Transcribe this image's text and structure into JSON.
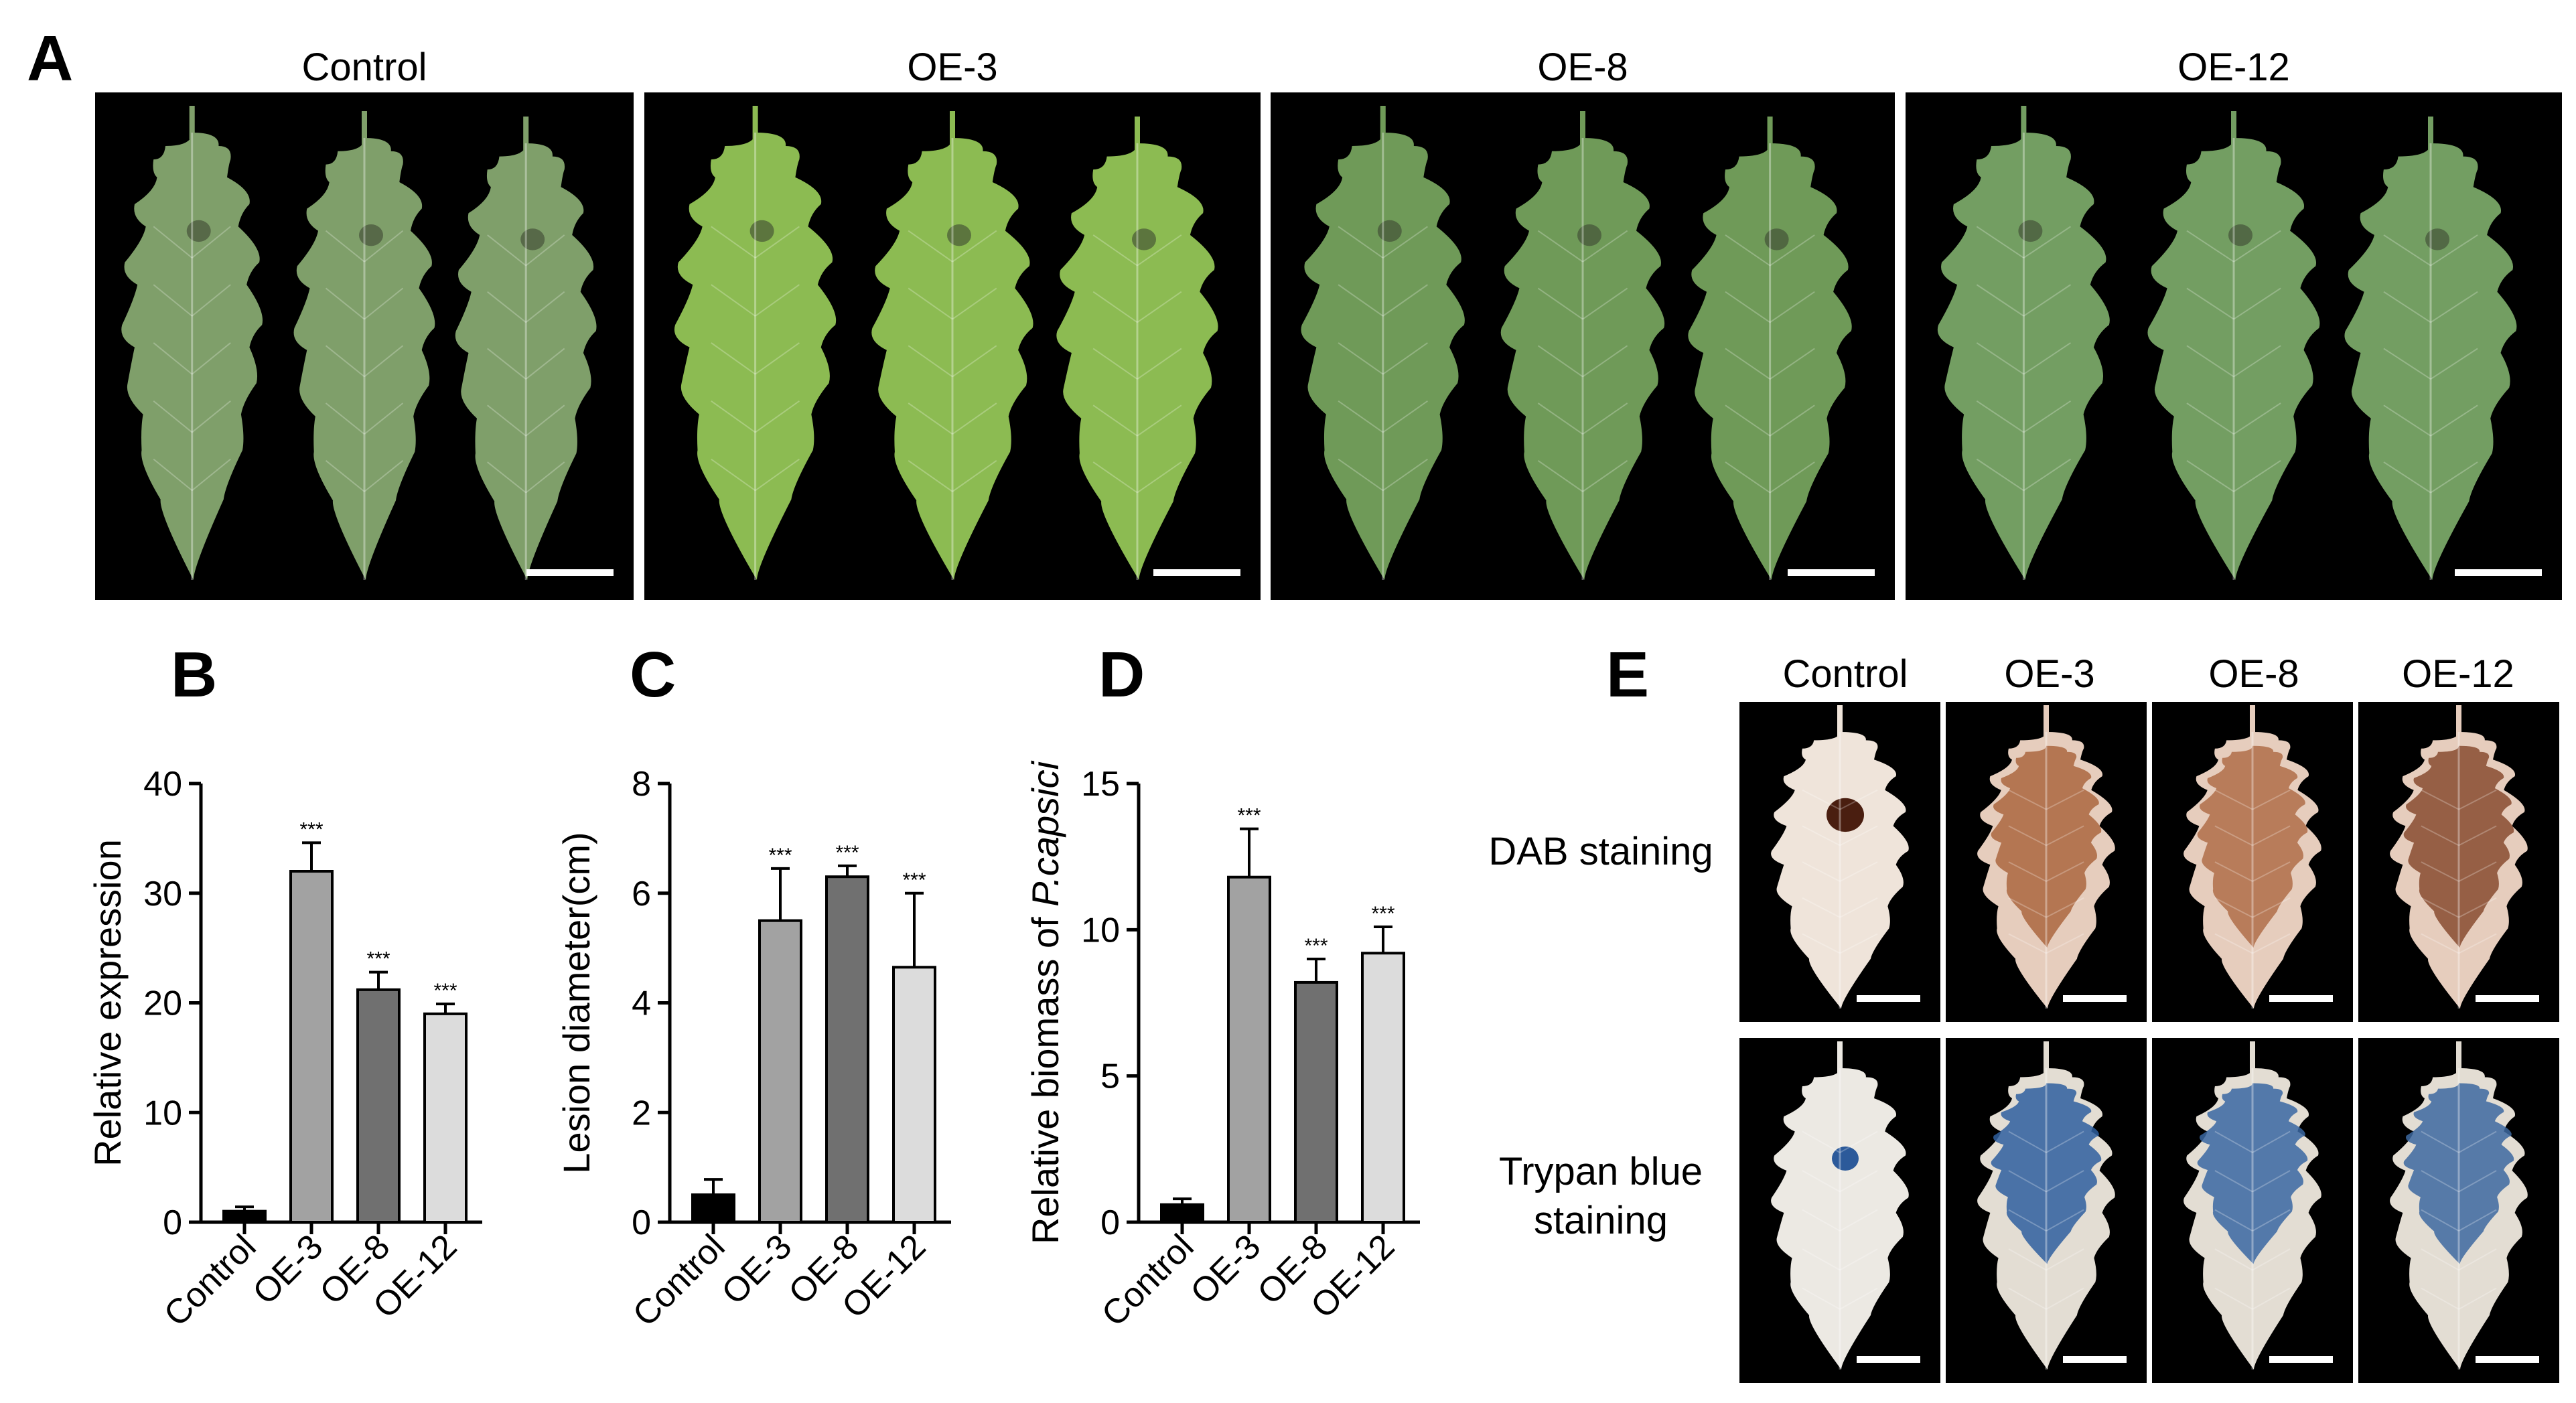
{
  "panel_letters": {
    "a": "A",
    "b": "B",
    "c": "C",
    "d": "D",
    "e": "E"
  },
  "panel_a": {
    "columns": [
      "Control",
      "OE-3",
      "OE-8",
      "OE-12"
    ],
    "leaf_colors": [
      "#7f9f6a",
      "#8cbb52",
      "#6f9a58",
      "#739e62"
    ]
  },
  "chart_data": [
    {
      "type": "bar",
      "panel": "B",
      "categories": [
        "Control",
        "OE-3",
        "OE-8",
        "OE-12"
      ],
      "values": [
        1,
        32,
        21.2,
        19
      ],
      "errors": [
        0.4,
        2.6,
        1.6,
        0.9
      ],
      "significance": [
        "",
        "***",
        "***",
        "***"
      ],
      "ylabel": "Relative expression",
      "ylim": [
        0,
        40
      ],
      "yticks": [
        0,
        10,
        20,
        30,
        40
      ],
      "bar_colors": [
        "#000000",
        "#a2a2a2",
        "#707070",
        "#dcdcdc"
      ]
    },
    {
      "type": "bar",
      "panel": "C",
      "categories": [
        "Control",
        "OE-3",
        "OE-8",
        "OE-12"
      ],
      "values": [
        0.5,
        5.5,
        6.3,
        4.65
      ],
      "errors": [
        0.28,
        0.95,
        0.2,
        1.35
      ],
      "significance": [
        "",
        "***",
        "***",
        "***"
      ],
      "ylabel": "Lesion diameter(cm)",
      "ylim": [
        0,
        8
      ],
      "yticks": [
        0,
        2,
        4,
        6,
        8
      ],
      "bar_colors": [
        "#000000",
        "#a2a2a2",
        "#707070",
        "#dcdcdc"
      ]
    },
    {
      "type": "bar",
      "panel": "D",
      "categories": [
        "Control",
        "OE-3",
        "OE-8",
        "OE-12"
      ],
      "values": [
        0.6,
        11.8,
        8.2,
        9.2
      ],
      "errors": [
        0.2,
        1.65,
        0.8,
        0.9
      ],
      "significance": [
        "",
        "***",
        "***",
        "***"
      ],
      "ylabel": "Relative biomass of ",
      "ylabel_italic": "P.capsici",
      "ylim": [
        0,
        15
      ],
      "yticks": [
        0,
        5,
        10,
        15
      ],
      "bar_colors": [
        "#000000",
        "#a2a2a2",
        "#707070",
        "#dcdcdc"
      ]
    }
  ],
  "panel_e": {
    "columns": [
      "Control",
      "OE-3",
      "OE-8",
      "OE-12"
    ],
    "row_labels": {
      "dab": "DAB staining",
      "trypan_line1": "Trypan blue",
      "trypan_line2": "staining"
    },
    "dab_colors": [
      "#e2cbbd",
      "#a3582f",
      "#a8603a",
      "#7b3a1e"
    ],
    "trypan_colors": [
      "#e6e2dc",
      "#2f5f9f",
      "#3a67a2",
      "#3d69a0"
    ]
  }
}
